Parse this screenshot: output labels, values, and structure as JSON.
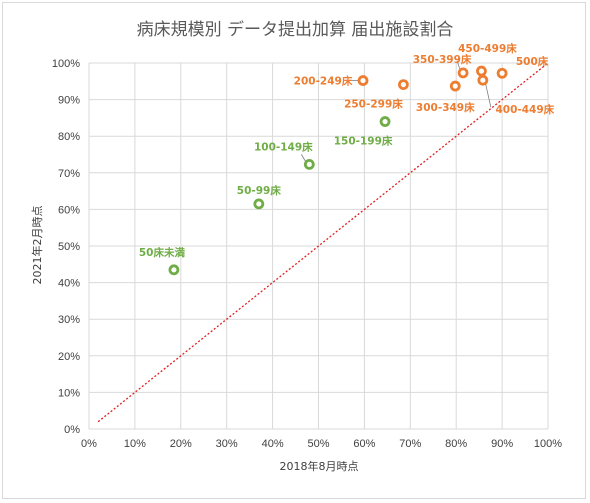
{
  "chart_data": {
    "type": "scatter",
    "title": "病床規模別 データ提出加算 届出施設割合",
    "xlabel": "2018年8月時点",
    "ylabel": "2021年2月時点",
    "xlim": [
      0,
      100
    ],
    "ylim": [
      0,
      100
    ],
    "x_ticks": [
      "0%",
      "10%",
      "20%",
      "30%",
      "40%",
      "50%",
      "60%",
      "70%",
      "80%",
      "90%",
      "100%"
    ],
    "y_ticks": [
      "0%",
      "10%",
      "20%",
      "30%",
      "40%",
      "50%",
      "60%",
      "70%",
      "80%",
      "90%",
      "100%"
    ],
    "grid": true,
    "reference_line": {
      "from": [
        2,
        2
      ],
      "to": [
        100,
        100
      ],
      "style": "dotted",
      "color": "#e02020"
    },
    "colors": {
      "small": "#70ad47",
      "large": "#ed7d31"
    },
    "points": [
      {
        "label": "50床未満",
        "x": 18.5,
        "y": 43.5,
        "group": "small"
      },
      {
        "label": "50-99床",
        "x": 37.0,
        "y": 61.5,
        "group": "small"
      },
      {
        "label": "100-149床",
        "x": 48.0,
        "y": 72.3,
        "group": "small"
      },
      {
        "label": "150-199床",
        "x": 64.5,
        "y": 84.0,
        "group": "small"
      },
      {
        "label": "200-249床",
        "x": 59.7,
        "y": 95.2,
        "group": "large"
      },
      {
        "label": "250-299床",
        "x": 68.5,
        "y": 94.1,
        "group": "large"
      },
      {
        "label": "300-349床",
        "x": 79.8,
        "y": 93.7,
        "group": "large"
      },
      {
        "label": "350-399床",
        "x": 81.5,
        "y": 97.3,
        "group": "large"
      },
      {
        "label": "400-449床",
        "x": 85.8,
        "y": 95.3,
        "group": "large"
      },
      {
        "label": "450-499床",
        "x": 85.5,
        "y": 97.8,
        "group": "large"
      },
      {
        "label": "500床",
        "x": 90.0,
        "y": 97.2,
        "group": "large"
      }
    ]
  }
}
